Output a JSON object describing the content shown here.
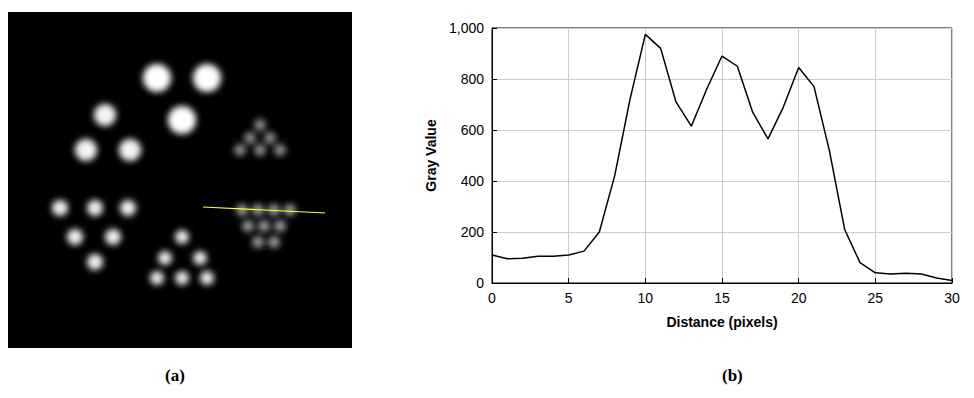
{
  "chart_data": {
    "type": "line",
    "x_label": "Distance (pixels)",
    "y_label": "Gray Value",
    "x": [
      0,
      1,
      2,
      3,
      4,
      5,
      6,
      7,
      8,
      9,
      10,
      11,
      12,
      13,
      14,
      15,
      16,
      17,
      18,
      19,
      20,
      21,
      22,
      23,
      24,
      25,
      26,
      27,
      28,
      29,
      30
    ],
    "values": [
      110,
      95,
      97,
      105,
      105,
      110,
      125,
      200,
      420,
      720,
      975,
      920,
      710,
      615,
      760,
      890,
      850,
      670,
      565,
      690,
      845,
      770,
      520,
      210,
      80,
      40,
      35,
      38,
      35,
      20,
      10
    ],
    "color": "#000000",
    "xlim": [
      0,
      30
    ],
    "xticks": [
      0,
      5,
      10,
      15,
      20,
      25,
      30
    ],
    "ylim": [
      0,
      1000
    ],
    "yticks": [
      0,
      200,
      400,
      600,
      800,
      1000
    ],
    "grid": true
  },
  "panel_labels": [
    "(a)",
    "(b)"
  ]
}
